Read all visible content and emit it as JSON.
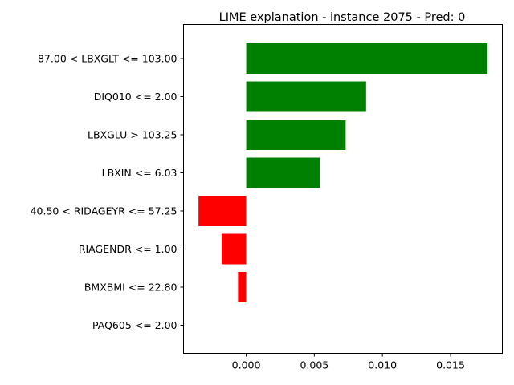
{
  "chart_data": {
    "type": "bar",
    "orientation": "horizontal",
    "title": "LIME explanation - instance 2075 - Pred: 0",
    "xlabel": "",
    "ylabel": "",
    "categories": [
      "87.00 < LBXGLT <= 103.00",
      "DIQ010 <= 2.00",
      "LBXGLU > 103.25",
      "LBXIN <= 6.03",
      "40.50 < RIDAGEYR <= 57.25",
      "RIAGENDR <= 1.00",
      "BMXBMI <= 22.80",
      "PAQ605 <= 2.00"
    ],
    "values": [
      0.0177,
      0.0088,
      0.0073,
      0.0054,
      -0.0035,
      -0.0018,
      -0.0006,
      0.0
    ],
    "xlim": [
      -0.0046,
      0.0188
    ],
    "xticks": [
      0.0,
      0.005,
      0.01,
      0.015
    ],
    "xtick_labels": [
      "0.000",
      "0.005",
      "0.010",
      "0.015"
    ],
    "positive_color": "#008000",
    "negative_color": "#ff0000",
    "grid": false,
    "legend": false
  }
}
